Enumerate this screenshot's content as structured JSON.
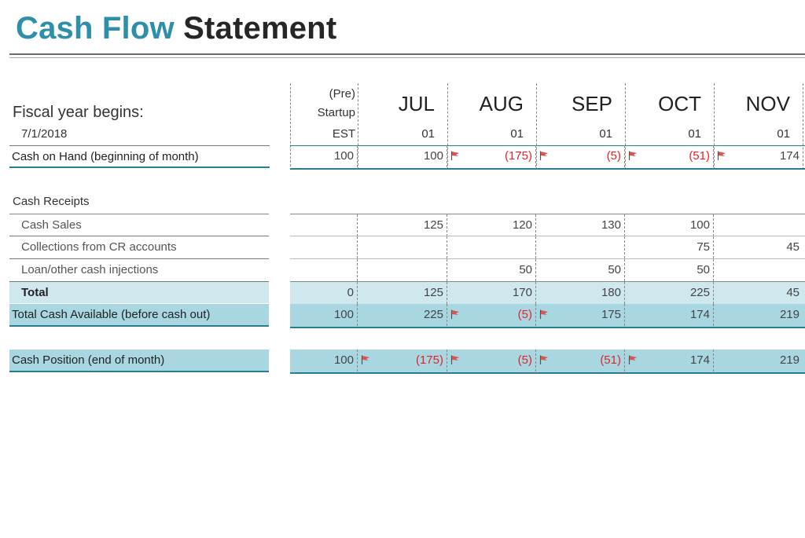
{
  "title": {
    "part1": "Cash Flow",
    "part2": "Statement"
  },
  "fiscal": {
    "label": "Fiscal year begins:",
    "date": "7/1/2018"
  },
  "columns": [
    {
      "top": "(Pre)",
      "mid": "Startup",
      "bottom": "EST"
    },
    {
      "month": "JUL",
      "day": "01"
    },
    {
      "month": "AUG",
      "day": "01"
    },
    {
      "month": "SEP",
      "day": "01"
    },
    {
      "month": "OCT",
      "day": "01"
    },
    {
      "month": "NOV",
      "day": "01"
    }
  ],
  "rows": {
    "cash_on_hand": {
      "label": "Cash on Hand (beginning of month)",
      "values": [
        "100",
        "100",
        "(175)",
        "(5)",
        "(51)",
        "174"
      ]
    },
    "receipts_header": "Cash Receipts",
    "cash_sales": {
      "label": "Cash Sales",
      "values": [
        "",
        "125",
        "120",
        "130",
        "100",
        ""
      ]
    },
    "collections": {
      "label": "Collections from CR accounts",
      "values": [
        "",
        "",
        "",
        "",
        "75",
        "45"
      ]
    },
    "loan": {
      "label": "Loan/other cash injections",
      "values": [
        "",
        "",
        "50",
        "50",
        "50",
        ""
      ]
    },
    "total": {
      "label": "Total",
      "values": [
        "0",
        "125",
        "170",
        "180",
        "225",
        "45"
      ]
    },
    "total_available": {
      "label": "Total Cash Available (before cash out)",
      "values": [
        "100",
        "225",
        "(5)",
        "175",
        "174",
        "219"
      ]
    },
    "cash_position": {
      "label": "Cash Position (end of month)",
      "values": [
        "100",
        "(175)",
        "(5)",
        "(51)",
        "174",
        "219"
      ]
    }
  },
  "colors": {
    "accent": "#2e8fa8",
    "negative": "#e8202a",
    "band_light": "#cfe8ee",
    "band_mid": "#a8d7e2",
    "flag": "#d9534f"
  },
  "icons": {
    "warning": "flag-icon"
  }
}
